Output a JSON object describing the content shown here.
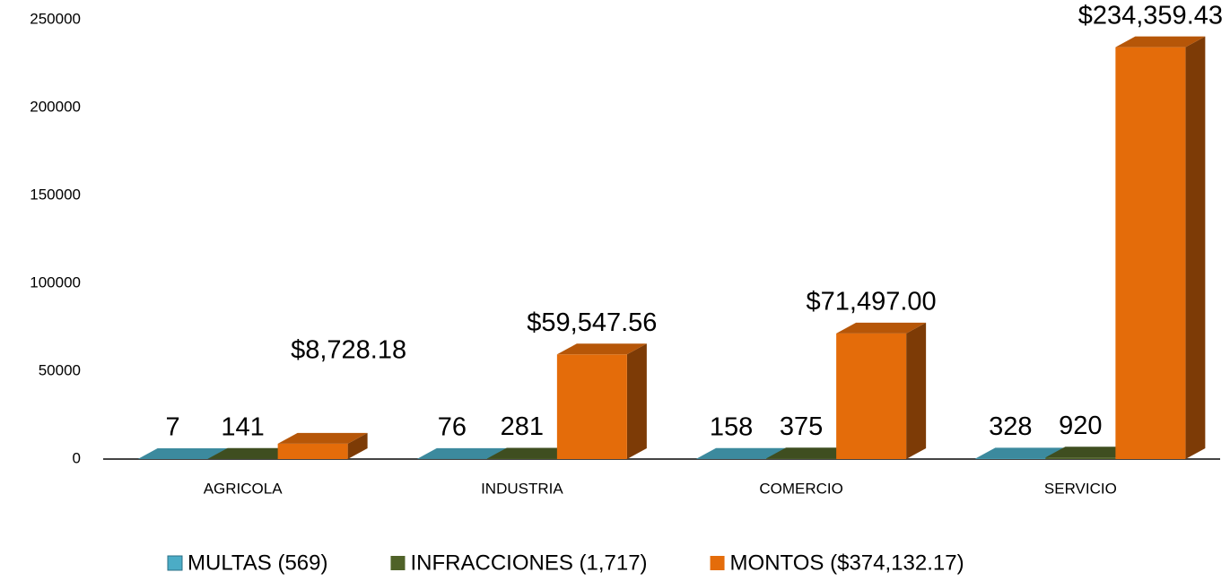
{
  "chart_data": {
    "type": "bar",
    "categories": [
      "AGRICOLA",
      "INDUSTRIA",
      "COMERCIO",
      "SERVICIO"
    ],
    "series": [
      {
        "name": "MULTAS (569)",
        "color": "#4bacc6",
        "values": [
          7,
          76,
          158,
          328
        ]
      },
      {
        "name": "INFRACCIONES (1,717)",
        "color": "#4f6228",
        "values": [
          141,
          281,
          375,
          920
        ]
      },
      {
        "name": "MONTOS ($374,132.17)",
        "color": "#e46c0a",
        "values": [
          8728.18,
          59547.56,
          71497,
          234359.43
        ],
        "value_labels": [
          "$8,728.18",
          "$59,547.56",
          "$71,497.00",
          "$234,359.43"
        ]
      }
    ],
    "ylim": [
      0,
      250000
    ],
    "yticks": [
      0,
      50000,
      100000,
      150000,
      200000,
      250000
    ],
    "legend": "bottom"
  }
}
